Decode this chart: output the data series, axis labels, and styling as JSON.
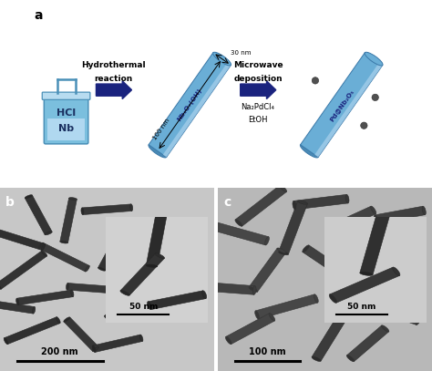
{
  "panel_a_label": "a",
  "panel_b_label": "b",
  "panel_c_label": "c",
  "beaker_text_line1": "HCl",
  "beaker_text_line2": "Nb",
  "hydrothermal_line1": "Hydrothermal",
  "hydrothermal_line2": "reaction",
  "microwave_line1": "Microwave",
  "microwave_line2": "deposition",
  "reagent_line1": "Na₂PdCl₄",
  "reagent_line2": "EtOH",
  "nanorod1_label": "Nb₃O₇(OH)",
  "nanorod2_label": "Pd@Nb₂O₅",
  "dim_100nm": "100 nm",
  "dim_30nm": "30 nm",
  "scale_b_main": "200 nm",
  "scale_b_inset": "50 nm",
  "scale_c_main": "100 nm",
  "scale_c_inset": "50 nm",
  "rod_color_body": "#6aaed6",
  "rod_color_highlight": "#aed4ee",
  "rod_color_dark_end": "#4a8ab5",
  "rod_edge_color": "#3a78a8",
  "beaker_body_color": "#7bbfde",
  "beaker_liquid_color": "#b0d8f0",
  "arrow_color": "#1a237e",
  "bg_color": "#ffffff",
  "text_color": "#000000",
  "tem_bg_b": 0.78,
  "tem_bg_c": 0.72,
  "rod_darkness_b": 0.22,
  "rod_darkness_c": 0.25
}
